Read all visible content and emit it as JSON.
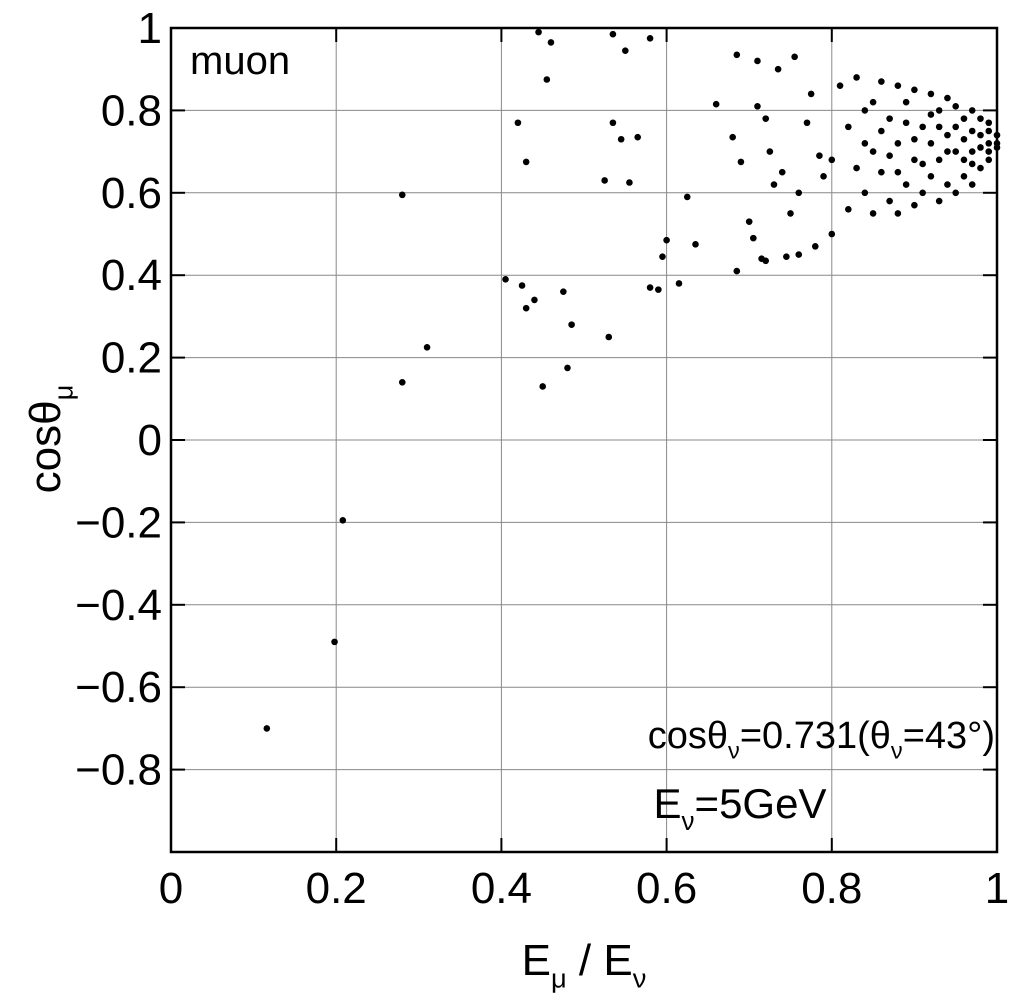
{
  "chart_data": {
    "type": "scatter",
    "x_label": [
      {
        "text": "E"
      },
      {
        "text": "μ",
        "sub": true
      },
      {
        "text": " / E"
      },
      {
        "text": "ν",
        "sub": true
      }
    ],
    "y_label": [
      {
        "text": "cosθ"
      },
      {
        "text": "μ",
        "sub": true
      }
    ],
    "annotations": [
      {
        "segments": [
          {
            "text": "muon"
          }
        ]
      },
      {
        "segments": [
          {
            "text": "cosθ"
          },
          {
            "text": "ν",
            "sub": true
          },
          {
            "text": "=0.731(θ"
          },
          {
            "text": "ν",
            "sub": true
          },
          {
            "text": "=43°)"
          }
        ]
      },
      {
        "segments": [
          {
            "text": "E"
          },
          {
            "text": "ν",
            "sub": true
          },
          {
            "text": "=5GeV"
          }
        ]
      }
    ],
    "color": "#000000",
    "grid": true,
    "xlim": [
      0,
      1
    ],
    "ylim": [
      -1,
      1
    ],
    "xticks": [
      0,
      0.2,
      0.4,
      0.6,
      0.8,
      1
    ],
    "yticks": [
      {
        "value": -0.8,
        "label": "−0.8"
      },
      {
        "value": -0.6,
        "label": "−0.6"
      },
      {
        "value": -0.4,
        "label": "−0.4"
      },
      {
        "value": -0.2,
        "label": "−0.2"
      },
      0,
      0.2,
      0.4,
      0.6,
      0.8,
      1
    ],
    "x": [
      0.116,
      0.198,
      0.208,
      0.28,
      0.28,
      0.31,
      0.405,
      0.42,
      0.43,
      0.425,
      0.43,
      0.44,
      0.445,
      0.45,
      0.455,
      0.46,
      0.475,
      0.48,
      0.485,
      0.525,
      0.53,
      0.535,
      0.535,
      0.545,
      0.55,
      0.555,
      0.565,
      0.58,
      0.58,
      0.59,
      0.595,
      0.6,
      0.615,
      0.625,
      0.635,
      0.66,
      0.68,
      0.685,
      0.685,
      0.69,
      0.7,
      0.705,
      0.71,
      0.71,
      0.715,
      0.72,
      0.72,
      0.725,
      0.73,
      0.735,
      0.74,
      0.745,
      0.75,
      0.755,
      0.76,
      0.76,
      0.77,
      0.775,
      0.78,
      0.785,
      0.79,
      0.8,
      0.8,
      0.81,
      0.82,
      0.82,
      0.83,
      0.84,
      0.84,
      0.85,
      0.85,
      0.86,
      0.86,
      0.87,
      0.87,
      0.88,
      0.88,
      0.88,
      0.89,
      0.89,
      0.9,
      0.9,
      0.9,
      0.91,
      0.91,
      0.92,
      0.92,
      0.92,
      0.93,
      0.93,
      0.93,
      0.94,
      0.94,
      0.94,
      0.95,
      0.95,
      0.95,
      0.96,
      0.96,
      0.96,
      0.97,
      0.97,
      0.97,
      0.97,
      0.98,
      0.98,
      0.98,
      0.98,
      0.99,
      0.99,
      0.99,
      0.99,
      0.99,
      1.0,
      1.0,
      1.0,
      0.97,
      0.96,
      0.95,
      0.94,
      0.93,
      0.92,
      0.91,
      0.9,
      0.89,
      0.88,
      0.87,
      0.86,
      0.85,
      0.84,
      0.83
    ],
    "y": [
      -0.7,
      -0.49,
      -0.195,
      0.595,
      0.14,
      0.225,
      0.39,
      0.77,
      0.675,
      0.375,
      0.32,
      0.34,
      0.99,
      0.13,
      0.875,
      0.965,
      0.36,
      0.175,
      0.28,
      0.63,
      0.25,
      0.77,
      0.985,
      0.73,
      0.945,
      0.625,
      0.735,
      0.975,
      0.37,
      0.365,
      0.445,
      0.485,
      0.38,
      0.59,
      0.475,
      0.815,
      0.735,
      0.41,
      0.935,
      0.675,
      0.53,
      0.49,
      0.81,
      0.92,
      0.44,
      0.435,
      0.78,
      0.7,
      0.62,
      0.9,
      0.65,
      0.445,
      0.55,
      0.93,
      0.45,
      0.6,
      0.77,
      0.84,
      0.47,
      0.69,
      0.64,
      0.5,
      0.68,
      0.86,
      0.56,
      0.76,
      0.88,
      0.6,
      0.8,
      0.55,
      0.7,
      0.87,
      0.65,
      0.58,
      0.78,
      0.55,
      0.86,
      0.72,
      0.62,
      0.82,
      0.57,
      0.85,
      0.68,
      0.76,
      0.6,
      0.84,
      0.64,
      0.72,
      0.58,
      0.8,
      0.68,
      0.83,
      0.62,
      0.74,
      0.6,
      0.81,
      0.7,
      0.64,
      0.78,
      0.73,
      0.67,
      0.8,
      0.62,
      0.75,
      0.66,
      0.78,
      0.71,
      0.74,
      0.68,
      0.77,
      0.72,
      0.7,
      0.75,
      0.72,
      0.74,
      0.71,
      0.7,
      0.68,
      0.76,
      0.7,
      0.76,
      0.79,
      0.67,
      0.73,
      0.77,
      0.65,
      0.69,
      0.75,
      0.82,
      0.72,
      0.66
    ]
  }
}
